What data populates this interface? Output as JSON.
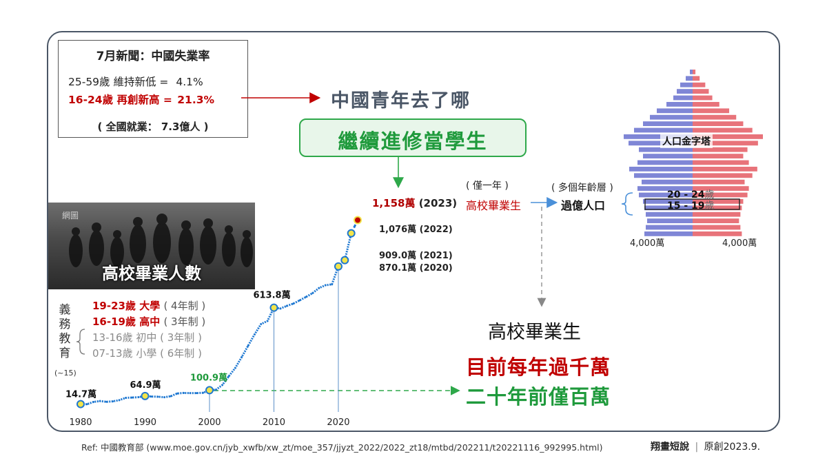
{
  "news": {
    "title": "7月新聞：中國失業率",
    "line1_label": "25-59歲 維持新低 =",
    "line1_value": "4.1%",
    "line2_label": "16-24歲 再創新高 =",
    "line2_value": "21.3%",
    "employment": "( 全國就業： 7.3億人 )"
  },
  "question": "中國青年去了哪",
  "study_box": "繼續進修當學生",
  "photo": {
    "tag": "網圖",
    "caption": "高校畢業人數"
  },
  "education": {
    "vertical_label": "義務教育",
    "tilde": "(~15)",
    "rows": [
      {
        "age": "19-23歲 大學",
        "note": "( 4年制 )"
      },
      {
        "age": "16-19歲 高中",
        "note": "( 3年制 )"
      },
      {
        "age": "13-16歲 初中",
        "note": "( 3年制 )"
      },
      {
        "age": "07-13歲 小學",
        "note": "( 6年制 )"
      }
    ]
  },
  "annotations": {
    "v2023": "1,158萬",
    "y2023": "(2023)",
    "v2022": "1,076萬 (2022)",
    "v2021": "909.0萬 (2021)",
    "v2020": "870.1萬 (2020)"
  },
  "pyramid": {
    "title": "人口金字塔",
    "age1": "20 - 24",
    "age2": "15 - 19",
    "age_unit": "歲",
    "left_scale": "4,000萬",
    "right_scale": "4,000萬",
    "male_color": "#7f86d6",
    "female_color": "#e8737a"
  },
  "flow": {
    "grad_head": "( 僅一年 )",
    "grad_label": "高校畢業生",
    "multi_head": "( 多個年齡層 )",
    "multi_value": "過億人口"
  },
  "conclusion": {
    "title": "高校畢業生",
    "line_red": "目前每年過千萬",
    "line_green": "二十年前僅百萬"
  },
  "footer": {
    "ref": "Ref: 中國教育部 (www.moe.gov.cn/jyb_xwfb/xw_zt/moe_357/jjyzt_2022/2022_zt18/mtbd/202211/t20221116_992995.html)",
    "brand": "翔畫短說",
    "sep": "|",
    "original": "原創2023.9."
  },
  "colors": {
    "line": "#1f78d1",
    "marker": "#f2e44a",
    "red": "#c00000",
    "green": "#1f9a3c"
  },
  "chart_data": {
    "type": "line",
    "title": "高校畢業人數",
    "unit": "萬",
    "x": [
      1980,
      1981,
      1982,
      1983,
      1984,
      1985,
      1986,
      1987,
      1988,
      1989,
      1990,
      1991,
      1992,
      1993,
      1994,
      1995,
      1996,
      1997,
      1998,
      1999,
      2000,
      2001,
      2002,
      2003,
      2004,
      2005,
      2006,
      2007,
      2008,
      2009,
      2010,
      2011,
      2012,
      2013,
      2014,
      2015,
      2016,
      2017,
      2018,
      2019,
      2020,
      2021,
      2022,
      2023
    ],
    "values": [
      14.7,
      14,
      28,
      33.5,
      28.7,
      31.6,
      39.3,
      53.2,
      55.3,
      57.6,
      64.9,
      61.4,
      60.4,
      57.1,
      63.7,
      80.5,
      83.9,
      82.9,
      83.0,
      84.8,
      100.9,
      103.6,
      133.7,
      187.7,
      239.1,
      306.8,
      377.5,
      447.8,
      511.9,
      531.1,
      613.8,
      608.2,
      624.7,
      638.7,
      659.4,
      680.9,
      704.2,
      735.8,
      753.3,
      758.5,
      870.1,
      909.0,
      1076,
      1158
    ],
    "x_ticks": [
      1980,
      1990,
      2000,
      2010,
      2020
    ],
    "ylim": [
      0,
      1250
    ],
    "labeled_points": [
      {
        "x": 1980,
        "label": "14.7萬"
      },
      {
        "x": 1990,
        "label": "64.9萬"
      },
      {
        "x": 2000,
        "label": "100.9萬"
      },
      {
        "x": 2010,
        "label": "613.8萬"
      }
    ]
  }
}
